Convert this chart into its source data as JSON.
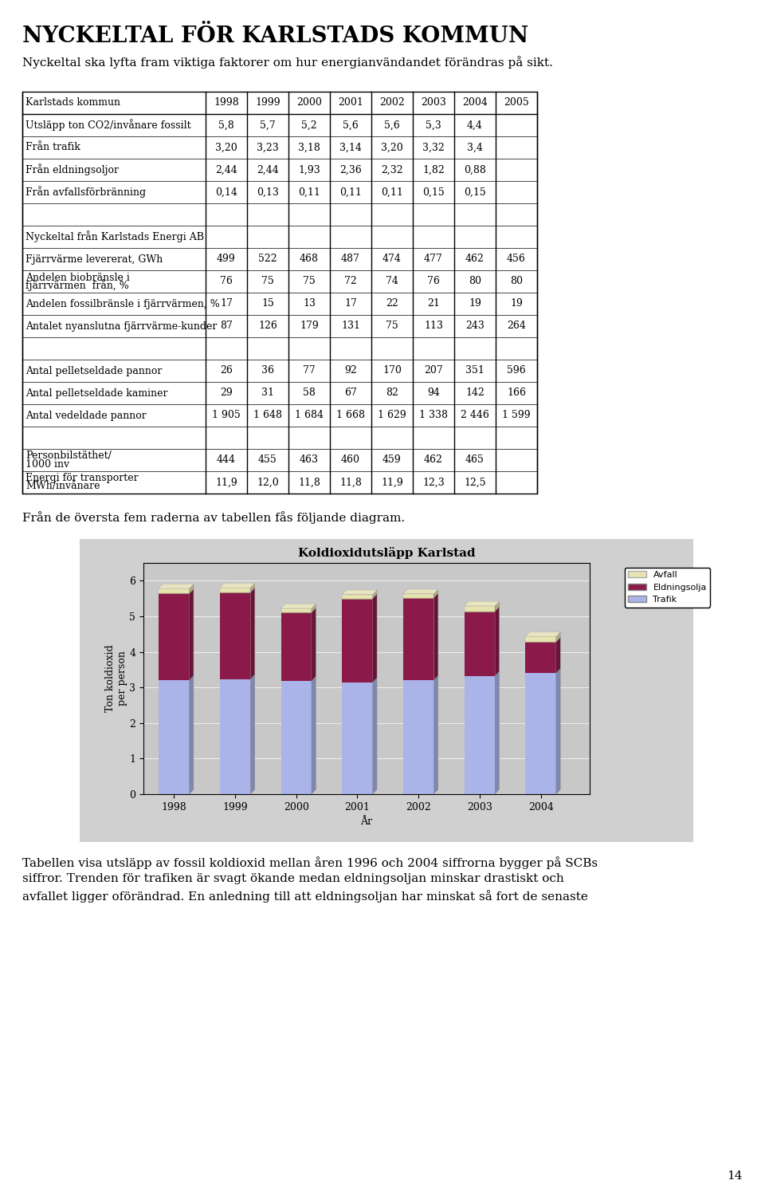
{
  "page_title": "NYCKELTAL FÖR KARLSTADS KOMMUN",
  "subtitle": "Nyckeltal ska lyfta fram viktiga faktorer om hur energianvändandet förändras på sikt.",
  "table_headers": [
    "Karlstads kommun",
    "1998",
    "1999",
    "2000",
    "2001",
    "2002",
    "2003",
    "2004",
    "2005"
  ],
  "table_rows": [
    [
      "Utsläpp ton CO2/invånare fossilt",
      "5,8",
      "5,7",
      "5,2",
      "5,6",
      "5,6",
      "5,3",
      "4,4",
      ""
    ],
    [
      "Från trafik",
      "3,20",
      "3,23",
      "3,18",
      "3,14",
      "3,20",
      "3,32",
      "3,4",
      ""
    ],
    [
      "Från eldningsoljor",
      "2,44",
      "2,44",
      "1,93",
      "2,36",
      "2,32",
      "1,82",
      "0,88",
      ""
    ],
    [
      "Från avfallsförbränning",
      "0,14",
      "0,13",
      "0,11",
      "0,11",
      "0,11",
      "0,15",
      "0,15",
      ""
    ],
    [
      "",
      "",
      "",
      "",
      "",
      "",
      "",
      "",
      ""
    ],
    [
      "Nyckeltal från Karlstads Energi AB",
      "",
      "",
      "",
      "",
      "",
      "",
      "",
      ""
    ],
    [
      "Fjärrvärme levererat, GWh",
      "499",
      "522",
      "468",
      "487",
      "474",
      "477",
      "462",
      "456"
    ],
    [
      "Andelen biobränsle i\nfjärrvärmen  från, %",
      "76",
      "75",
      "75",
      "72",
      "74",
      "76",
      "80",
      "80"
    ],
    [
      "Andelen fossilbränsle i fjärrvärmen, %",
      "17",
      "15",
      "13",
      "17",
      "22",
      "21",
      "19",
      "19"
    ],
    [
      "Antalet nyanslutna fjärrvärme­kunder",
      "87",
      "126",
      "179",
      "131",
      "75",
      "113",
      "243",
      "264"
    ],
    [
      "",
      "",
      "",
      "",
      "",
      "",
      "",
      "",
      ""
    ],
    [
      "Antal pelletseldade pannor",
      "26",
      "36",
      "77",
      "92",
      "170",
      "207",
      "351",
      "596"
    ],
    [
      "Antal pelletseldade kaminer",
      "29",
      "31",
      "58",
      "67",
      "82",
      "94",
      "142",
      "166"
    ],
    [
      "Antal vedeldade pannor",
      "1 905",
      "1 648",
      "1 684",
      "1 668",
      "1 629",
      "1 338",
      "2 446",
      "1 599"
    ],
    [
      "",
      "",
      "",
      "",
      "",
      "",
      "",
      "",
      ""
    ],
    [
      "Personbilstäthet/\n1000 inv",
      "444",
      "455",
      "463",
      "460",
      "459",
      "462",
      "465",
      ""
    ],
    [
      "Energi för transporter\nMWh/invånare",
      "11,9",
      "12,0",
      "11,8",
      "11,8",
      "11,9",
      "12,3",
      "12,5",
      ""
    ]
  ],
  "chart_title": "Koldioxidutsläpp Karlstad",
  "chart_years": [
    "1998",
    "1999",
    "2000",
    "2001",
    "2002",
    "2003",
    "2004"
  ],
  "chart_trafik": [
    3.2,
    3.23,
    3.18,
    3.14,
    3.2,
    3.32,
    3.4
  ],
  "chart_eldning": [
    2.44,
    2.44,
    1.93,
    2.36,
    2.32,
    1.82,
    0.88
  ],
  "chart_avfall": [
    0.14,
    0.13,
    0.11,
    0.11,
    0.11,
    0.15,
    0.15
  ],
  "color_trafik": "#aab4e8",
  "color_eldning": "#8b1a4a",
  "color_avfall": "#e8e4b0",
  "chart_ylabel": "Ton koldioxid\nper person",
  "chart_xlabel": "År",
  "legend_labels": [
    "Avfall",
    "Eldningsolja",
    "Trafik"
  ],
  "bottom_text": "Från de översta fem raderna av tabellen fås följande diagram.",
  "footer_text": "Tabellen visa utsläpp av fossil koldioxid mellan åren 1996 och 2004 siffrorna bygger på SCBs\nsiffror. Trenden för trafiken är svagt ökande medan eldningsoljan minskar drastiskt och\navfallet ligger oförändrad. En anledning till att eldningsoljan har minskat så fort de senaste",
  "page_number": "14",
  "background_color": "#ffffff",
  "chart_bg": "#d4d4d4",
  "chart_plot_bg": "#c8c8c8"
}
